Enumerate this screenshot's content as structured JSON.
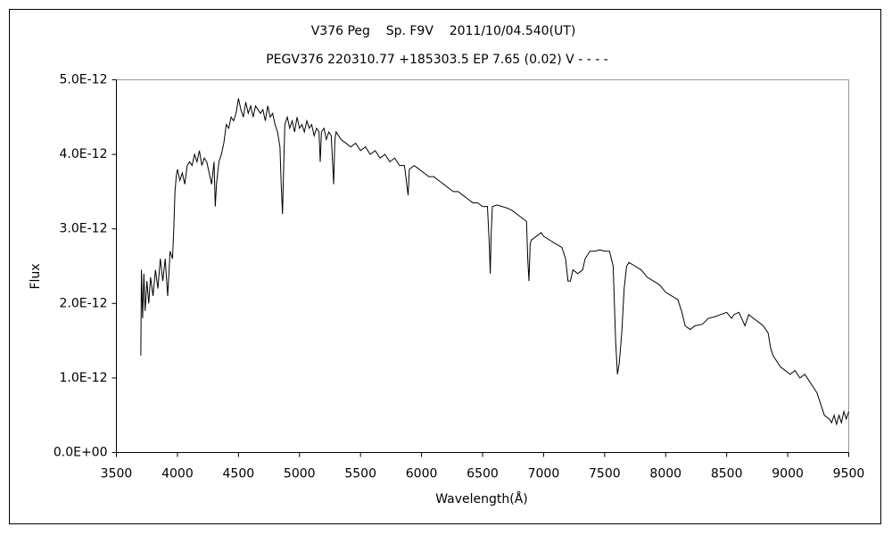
{
  "chart_data": {
    "type": "line",
    "title": "V376 Peg    Sp. F9V    2011/10/04.540(UT)",
    "subtitle": "PEGV376 220310.77 +185303.5 EP 7.65 (0.02) V - - - -",
    "x_label": "Wavelength(Å)",
    "y_label": "Flux",
    "color": "#000000",
    "xlim": [
      3500,
      9500
    ],
    "xticks": [
      3500,
      4000,
      4500,
      5000,
      5500,
      6000,
      6500,
      7000,
      7500,
      8000,
      8500,
      9000,
      9500
    ],
    "ylim": [
      0,
      5e-12
    ],
    "yticks": [
      {
        "value": 0,
        "label": "0.0E+00"
      },
      {
        "value": 1e-12,
        "label": "1.0E-12"
      },
      {
        "value": 2e-12,
        "label": "2.0E-12"
      },
      {
        "value": 3e-12,
        "label": "3.0E-12"
      },
      {
        "value": 4e-12,
        "label": "4.0E-12"
      },
      {
        "value": 5e-12,
        "label": "5.0E-12"
      }
    ],
    "x": [
      3700,
      3705,
      3715,
      3725,
      3735,
      3750,
      3765,
      3780,
      3800,
      3820,
      3840,
      3860,
      3880,
      3900,
      3920,
      3940,
      3960,
      3970,
      3980,
      3990,
      4000,
      4020,
      4040,
      4060,
      4080,
      4100,
      4120,
      4140,
      4160,
      4180,
      4200,
      4220,
      4240,
      4260,
      4280,
      4300,
      4310,
      4320,
      4340,
      4360,
      4380,
      4400,
      4420,
      4440,
      4460,
      4480,
      4500,
      4520,
      4540,
      4560,
      4580,
      4600,
      4620,
      4640,
      4660,
      4680,
      4700,
      4720,
      4740,
      4760,
      4780,
      4800,
      4820,
      4840,
      4850,
      4861,
      4870,
      4880,
      4900,
      4920,
      4940,
      4960,
      4980,
      5000,
      5020,
      5040,
      5060,
      5080,
      5100,
      5120,
      5140,
      5160,
      5170,
      5180,
      5200,
      5220,
      5240,
      5260,
      5280,
      5290,
      5300,
      5340,
      5380,
      5420,
      5460,
      5500,
      5540,
      5580,
      5620,
      5660,
      5700,
      5740,
      5780,
      5820,
      5860,
      5890,
      5900,
      5940,
      5980,
      6020,
      6060,
      6100,
      6140,
      6180,
      6220,
      6260,
      6300,
      6340,
      6380,
      6420,
      6460,
      6500,
      6540,
      6555,
      6563,
      6570,
      6580,
      6620,
      6660,
      6700,
      6740,
      6780,
      6820,
      6860,
      6870,
      6880,
      6890,
      6900,
      6940,
      6980,
      7000,
      7050,
      7100,
      7150,
      7180,
      7200,
      7220,
      7240,
      7280,
      7320,
      7340,
      7380,
      7420,
      7460,
      7500,
      7540,
      7570,
      7590,
      7605,
      7620,
      7640,
      7660,
      7680,
      7700,
      7750,
      7800,
      7850,
      7900,
      7950,
      8000,
      8050,
      8100,
      8130,
      8160,
      8200,
      8240,
      8300,
      8350,
      8400,
      8450,
      8500,
      8540,
      8560,
      8600,
      8650,
      8680,
      8720,
      8760,
      8800,
      8840,
      8860,
      8880,
      8900,
      8920,
      8940,
      8980,
      9020,
      9060,
      9100,
      9140,
      9180,
      9200,
      9240,
      9280,
      9300,
      9340,
      9360,
      9380,
      9400,
      9420,
      9440,
      9460,
      9480,
      9500
    ],
    "values": [
      1.3e-12,
      2.45e-12,
      1.8e-12,
      2.4e-12,
      1.9e-12,
      2.3e-12,
      2e-12,
      2.35e-12,
      2.1e-12,
      2.45e-12,
      2.2e-12,
      2.6e-12,
      2.3e-12,
      2.6e-12,
      2.1e-12,
      2.7e-12,
      2.6e-12,
      3e-12,
      3.5e-12,
      3.7e-12,
      3.8e-12,
      3.65e-12,
      3.75e-12,
      3.6e-12,
      3.85e-12,
      3.9e-12,
      3.85e-12,
      4e-12,
      3.9e-12,
      4.05e-12,
      3.85e-12,
      3.95e-12,
      3.9e-12,
      3.75e-12,
      3.6e-12,
      3.9e-12,
      3.3e-12,
      3.6e-12,
      3.9e-12,
      4e-12,
      4.15e-12,
      4.4e-12,
      4.35e-12,
      4.5e-12,
      4.45e-12,
      4.55e-12,
      4.75e-12,
      4.6e-12,
      4.5e-12,
      4.7e-12,
      4.55e-12,
      4.65e-12,
      4.5e-12,
      4.65e-12,
      4.6e-12,
      4.55e-12,
      4.6e-12,
      4.45e-12,
      4.65e-12,
      4.5e-12,
      4.55e-12,
      4.4e-12,
      4.3e-12,
      4.1e-12,
      3.6e-12,
      3.2e-12,
      3.8e-12,
      4.4e-12,
      4.5e-12,
      4.35e-12,
      4.45e-12,
      4.3e-12,
      4.5e-12,
      4.35e-12,
      4.4e-12,
      4.3e-12,
      4.45e-12,
      4.35e-12,
      4.4e-12,
      4.25e-12,
      4.35e-12,
      4.3e-12,
      3.9e-12,
      4.3e-12,
      4.35e-12,
      4.2e-12,
      4.3e-12,
      4.25e-12,
      3.6e-12,
      4.2e-12,
      4.3e-12,
      4.2e-12,
      4.15e-12,
      4.1e-12,
      4.15e-12,
      4.05e-12,
      4.1e-12,
      4e-12,
      4.05e-12,
      3.95e-12,
      4e-12,
      3.9e-12,
      3.95e-12,
      3.85e-12,
      3.85e-12,
      3.45e-12,
      3.8e-12,
      3.85e-12,
      3.8e-12,
      3.75e-12,
      3.7e-12,
      3.7e-12,
      3.65e-12,
      3.6e-12,
      3.55e-12,
      3.5e-12,
      3.5e-12,
      3.45e-12,
      3.4e-12,
      3.35e-12,
      3.35e-12,
      3.3e-12,
      3.3e-12,
      2.8e-12,
      2.4e-12,
      2.9e-12,
      3.3e-12,
      3.32e-12,
      3.3e-12,
      3.28e-12,
      3.25e-12,
      3.2e-12,
      3.15e-12,
      3.1e-12,
      2.6e-12,
      2.3e-12,
      2.8e-12,
      2.85e-12,
      2.9e-12,
      2.95e-12,
      2.9e-12,
      2.85e-12,
      2.8e-12,
      2.75e-12,
      2.6e-12,
      2.3e-12,
      2.3e-12,
      2.45e-12,
      2.4e-12,
      2.45e-12,
      2.6e-12,
      2.7e-12,
      2.7e-12,
      2.72e-12,
      2.7e-12,
      2.7e-12,
      2.5e-12,
      1.5e-12,
      1.05e-12,
      1.2e-12,
      1.6e-12,
      2.2e-12,
      2.5e-12,
      2.55e-12,
      2.5e-12,
      2.45e-12,
      2.35e-12,
      2.3e-12,
      2.25e-12,
      2.15e-12,
      2.1e-12,
      2.05e-12,
      1.9e-12,
      1.7e-12,
      1.65e-12,
      1.7e-12,
      1.72e-12,
      1.8e-12,
      1.82e-12,
      1.85e-12,
      1.88e-12,
      1.8e-12,
      1.85e-12,
      1.88e-12,
      1.7e-12,
      1.85e-12,
      1.8e-12,
      1.75e-12,
      1.7e-12,
      1.6e-12,
      1.4e-12,
      1.3e-12,
      1.25e-12,
      1.2e-12,
      1.15e-12,
      1.1e-12,
      1.05e-12,
      1.1e-12,
      1e-12,
      1.05e-12,
      9.5e-13,
      9e-13,
      8e-13,
      6e-13,
      5e-13,
      4.5e-13,
      4e-13,
      5e-13,
      3.8e-13,
      5e-13,
      4e-13,
      5.5e-13,
      4.5e-13,
      5.5e-13
    ]
  }
}
